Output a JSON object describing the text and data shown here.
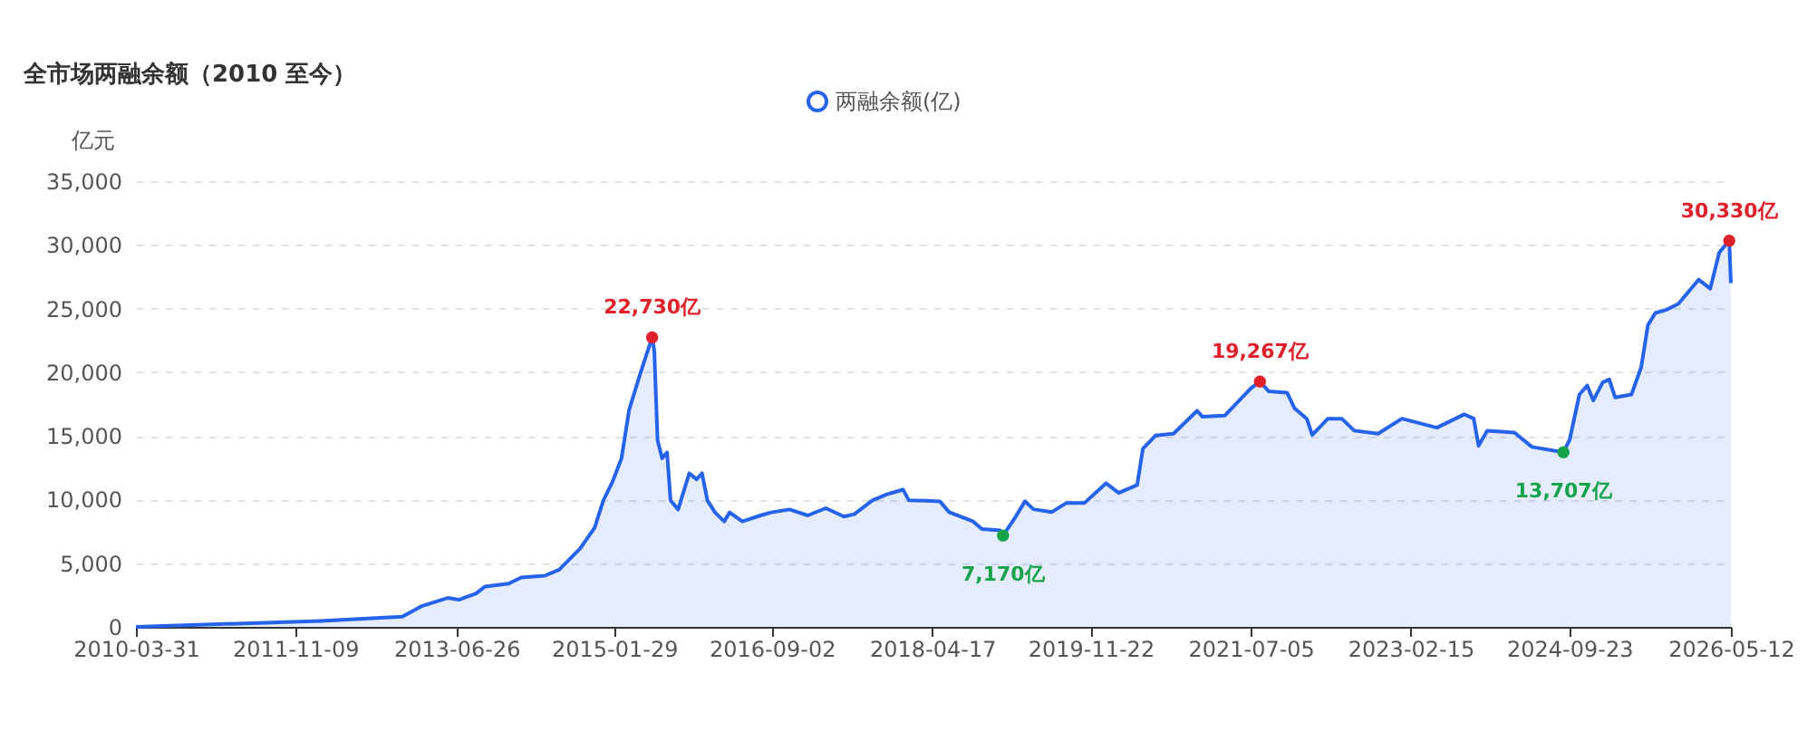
{
  "chart_data": {
    "type": "area",
    "title": "全市场两融余额（2010 至今）",
    "ylabel": "亿元",
    "x": [
      "2010-03-31",
      "2012-02-10",
      "2012-12-08",
      "2013-02-20",
      "2013-05-24",
      "2013-07-05",
      "2013-09-05",
      "2013-10-10",
      "2014-01-05",
      "2014-02-20",
      "2014-05-18",
      "2014-07-10",
      "2014-09-25",
      "2014-11-18",
      "2014-12-20",
      "2015-01-22",
      "2015-02-25",
      "2015-03-25",
      "2015-05-05",
      "2015-06-18",
      "2015-06-26",
      "2015-07-08",
      "2015-07-25",
      "2015-08-12",
      "2015-08-25",
      "2015-09-22",
      "2015-11-02",
      "2015-11-29",
      "2015-12-19",
      "2016-01-08",
      "2016-02-05",
      "2016-03-10",
      "2016-03-30",
      "2016-05-16",
      "2016-07-22",
      "2016-08-31",
      "2016-11-06",
      "2017-01-12",
      "2017-03-20",
      "2017-05-26",
      "2017-07-03",
      "2017-09-08",
      "2017-10-30",
      "2017-12-30",
      "2018-01-20",
      "2018-05-15",
      "2018-06-18",
      "2018-09-13",
      "2018-10-17",
      "2018-12-23",
      "2019-01-03",
      "2019-02-15",
      "2019-03-25",
      "2019-04-25",
      "2019-07-01",
      "2019-08-24",
      "2019-10-30",
      "2020-01-18",
      "2020-03-05",
      "2020-05-12",
      "2020-06-02",
      "2020-07-19",
      "2020-09-23",
      "2020-12-19",
      "2021-01-08",
      "2021-03-31",
      "2021-07-05",
      "2021-08-08",
      "2021-09-10",
      "2021-11-16",
      "2021-12-14",
      "2022-01-28",
      "2022-02-17",
      "2022-04-16",
      "2022-06-06",
      "2022-07-22",
      "2022-10-18",
      "2023-01-14",
      "2023-05-23",
      "2023-09-01",
      "2023-10-06",
      "2023-10-24",
      "2023-11-25",
      "2024-03-04",
      "2024-05-08",
      "2024-09-01",
      "2024-09-24",
      "2024-10-30",
      "2024-11-28",
      "2024-12-20",
      "2025-01-24",
      "2025-02-17",
      "2025-03-11",
      "2025-05-10",
      "2025-06-15",
      "2025-07-10",
      "2025-08-06",
      "2025-09-15",
      "2025-10-30",
      "2026-01-13",
      "2026-02-25",
      "2026-03-30",
      "2026-05-06",
      "2026-05-12"
    ],
    "series": [
      {
        "name": "两融余额(亿)",
        "color": "#2563eb",
        "values": [
          0,
          470,
          800,
          1650,
          2270,
          2130,
          2600,
          3170,
          3400,
          3880,
          4020,
          4490,
          6150,
          7800,
          9930,
          11350,
          13240,
          17030,
          19870,
          22730,
          21700,
          14660,
          13240,
          13700,
          9930,
          9220,
          12060,
          11590,
          12060,
          9930,
          8990,
          8280,
          8990,
          8280,
          8750,
          8990,
          9220,
          8750,
          9320,
          8660,
          8850,
          9930,
          10400,
          10780,
          9950,
          9860,
          9010,
          8300,
          7680,
          7580,
          7170,
          8530,
          9860,
          9240,
          9010,
          9720,
          9720,
          11280,
          10520,
          11140,
          13980,
          15030,
          15170,
          16970,
          16500,
          16590,
          18720,
          19267,
          18490,
          18390,
          17160,
          16350,
          15070,
          16350,
          16350,
          15410,
          15170,
          16350,
          15640,
          16690,
          16350,
          14220,
          15410,
          15260,
          14130,
          13707,
          14690,
          18250,
          18960,
          17780,
          19200,
          19430,
          18010,
          18250,
          20380,
          23700,
          24650,
          24890,
          25360,
          27270,
          26560,
          29400,
          30330,
          27000
        ]
      },
      {
        "type": "scatter",
        "color": "#e0202a",
        "x": [
          "2015-06-18",
          "2021-08-08",
          "2026-05-06"
        ],
        "values": [
          22730,
          19267,
          30330
        ]
      },
      {
        "type": "scatter",
        "color": "#16a34a",
        "x": [
          "2019-01-03",
          "2024-09-01"
        ],
        "values": [
          7170,
          13707
        ]
      }
    ],
    "annotations": [
      {
        "text": "22,730亿",
        "x": "2015-06-18",
        "y": 22730
      },
      {
        "text": "19,267亿",
        "x": "2021-08-08",
        "y": 19267
      },
      {
        "text": "30,330亿",
        "x": "2026-05-06",
        "y": 30330
      },
      {
        "text": "7,170亿",
        "x": "2019-01-03",
        "y": 7170
      },
      {
        "text": "13,707亿",
        "x": "2024-09-01",
        "y": 13707
      }
    ],
    "xlim": [
      "2010-03-31",
      "2026-05-12"
    ],
    "xticks": [
      "2010-03-31",
      "2011-11-09",
      "2013-06-26",
      "2015-01-29",
      "2016-09-02",
      "2018-04-17",
      "2019-11-22",
      "2021-07-05",
      "2023-02-15",
      "2024-09-23",
      "2026-05-12"
    ],
    "ylim": [
      0,
      35000
    ],
    "yticks": [
      0,
      {
        "value": 5000,
        "label": "5,000"
      },
      {
        "value": 10000,
        "label": "10,000"
      },
      {
        "value": 15000,
        "label": "15,000"
      },
      {
        "value": 20000,
        "label": "20,000"
      },
      {
        "value": 25000,
        "label": "25,000"
      },
      {
        "value": 30000,
        "label": "30,000"
      },
      {
        "value": 35000,
        "label": "35,000"
      }
    ],
    "grid": "y",
    "legend": "top"
  }
}
